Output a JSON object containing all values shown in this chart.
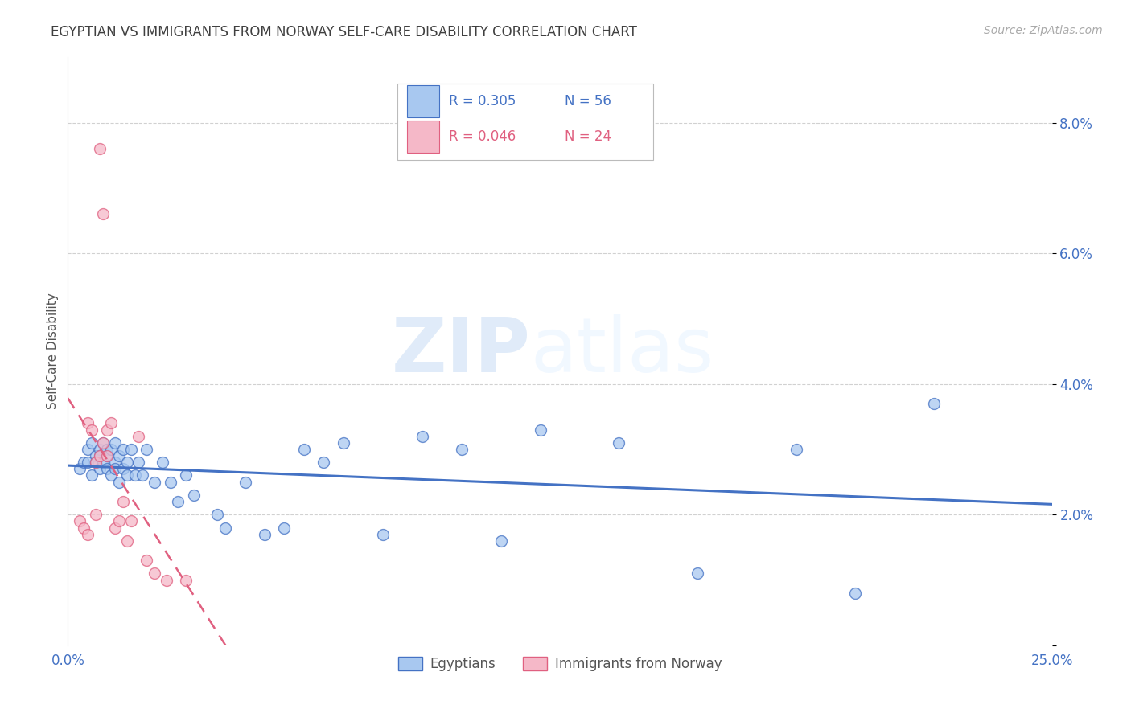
{
  "title": "EGYPTIAN VS IMMIGRANTS FROM NORWAY SELF-CARE DISABILITY CORRELATION CHART",
  "source": "Source: ZipAtlas.com",
  "ylabel": "Self-Care Disability",
  "xlim": [
    0.0,
    0.25
  ],
  "ylim": [
    0.0,
    0.09
  ],
  "xticks": [
    0.0,
    0.05,
    0.1,
    0.15,
    0.2,
    0.25
  ],
  "yticks": [
    0.0,
    0.02,
    0.04,
    0.06,
    0.08
  ],
  "ytick_labels": [
    "",
    "2.0%",
    "4.0%",
    "6.0%",
    "8.0%"
  ],
  "xtick_labels": [
    "0.0%",
    "",
    "",
    "",
    "",
    "25.0%"
  ],
  "label1": "Egyptians",
  "label2": "Immigrants from Norway",
  "color1": "#a8c8f0",
  "color2": "#f5b8c8",
  "line_color1": "#4472c4",
  "line_color2": "#e06080",
  "background_color": "#ffffff",
  "grid_color": "#cccccc",
  "title_color": "#404040",
  "axis_color": "#4472c4",
  "watermark_zip": "ZIP",
  "watermark_atlas": "atlas",
  "egyptians_x": [
    0.003,
    0.004,
    0.005,
    0.005,
    0.006,
    0.006,
    0.007,
    0.007,
    0.008,
    0.008,
    0.008,
    0.009,
    0.009,
    0.01,
    0.01,
    0.01,
    0.011,
    0.011,
    0.012,
    0.012,
    0.012,
    0.013,
    0.013,
    0.014,
    0.014,
    0.015,
    0.015,
    0.016,
    0.017,
    0.018,
    0.019,
    0.02,
    0.022,
    0.024,
    0.026,
    0.028,
    0.03,
    0.032,
    0.038,
    0.04,
    0.045,
    0.05,
    0.055,
    0.06,
    0.065,
    0.07,
    0.08,
    0.09,
    0.1,
    0.11,
    0.12,
    0.14,
    0.16,
    0.185,
    0.2,
    0.22
  ],
  "egyptians_y": [
    0.027,
    0.028,
    0.03,
    0.028,
    0.031,
    0.026,
    0.029,
    0.028,
    0.03,
    0.027,
    0.029,
    0.031,
    0.028,
    0.03,
    0.027,
    0.029,
    0.03,
    0.026,
    0.028,
    0.031,
    0.027,
    0.029,
    0.025,
    0.03,
    0.027,
    0.028,
    0.026,
    0.03,
    0.026,
    0.028,
    0.026,
    0.03,
    0.025,
    0.028,
    0.025,
    0.022,
    0.026,
    0.023,
    0.02,
    0.018,
    0.025,
    0.017,
    0.018,
    0.03,
    0.028,
    0.031,
    0.017,
    0.032,
    0.03,
    0.016,
    0.033,
    0.031,
    0.011,
    0.03,
    0.008,
    0.037
  ],
  "norway_x": [
    0.003,
    0.004,
    0.005,
    0.005,
    0.006,
    0.007,
    0.007,
    0.008,
    0.008,
    0.009,
    0.009,
    0.01,
    0.01,
    0.011,
    0.012,
    0.013,
    0.014,
    0.015,
    0.016,
    0.018,
    0.02,
    0.022,
    0.025,
    0.03
  ],
  "norway_y": [
    0.019,
    0.018,
    0.034,
    0.017,
    0.033,
    0.028,
    0.02,
    0.076,
    0.029,
    0.066,
    0.031,
    0.033,
    0.029,
    0.034,
    0.018,
    0.019,
    0.022,
    0.016,
    0.019,
    0.032,
    0.013,
    0.011,
    0.01,
    0.01
  ]
}
